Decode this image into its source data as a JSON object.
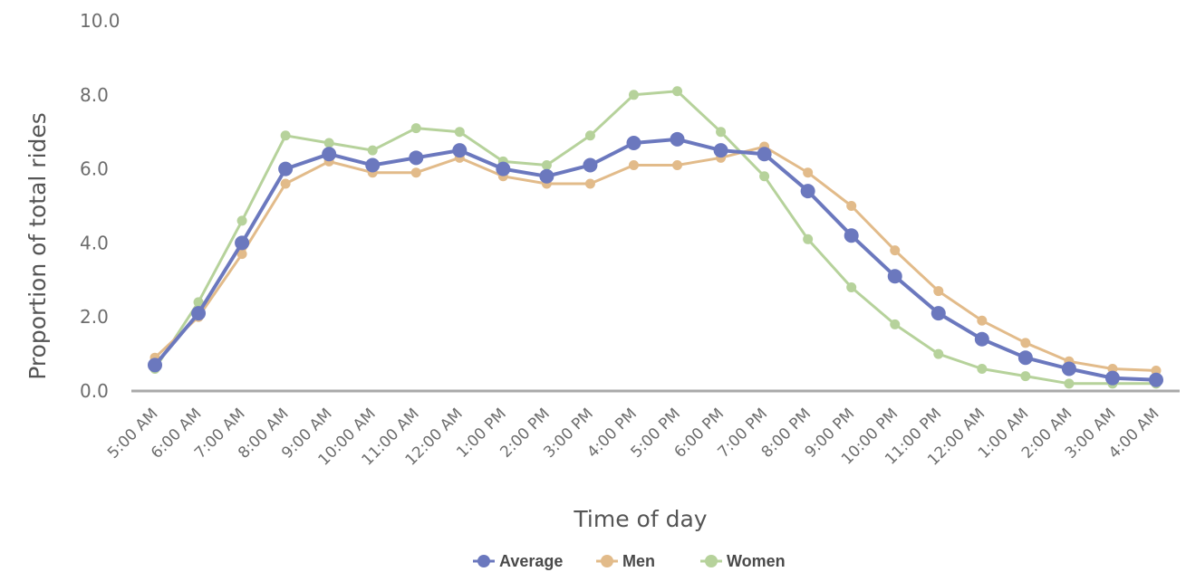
{
  "chart_data": {
    "type": "line",
    "xlabel": "Time of day",
    "ylabel": "Proportion of total rides",
    "ylim": [
      0,
      10
    ],
    "yticks": [
      "0.0",
      "2.0",
      "4.0",
      "6.0",
      "8.0",
      "10.0"
    ],
    "grid": false,
    "legend": "bottom-center",
    "categories": [
      "5:00 AM",
      "6:00 AM",
      "7:00 AM",
      "8:00 AM",
      "9:00 AM",
      "10:00 AM",
      "11:00 AM",
      "12:00 AM",
      "1:00 PM",
      "2:00 PM",
      "3:00 PM",
      "4:00 PM",
      "5:00 PM",
      "6:00 PM",
      "7:00 PM",
      "8:00 PM",
      "9:00 PM",
      "10:00 PM",
      "11:00 PM",
      "12:00 AM",
      "1:00 AM",
      "2:00 AM",
      "3:00 AM",
      "4:00 AM"
    ],
    "series": [
      {
        "name": "Average",
        "color": "#6b78be",
        "values": [
          0.7,
          2.1,
          4.0,
          6.0,
          6.4,
          6.1,
          6.3,
          6.5,
          6.0,
          5.8,
          6.1,
          6.7,
          6.8,
          6.5,
          6.4,
          5.4,
          4.2,
          3.1,
          2.1,
          1.4,
          0.9,
          0.6,
          0.35,
          0.3
        ]
      },
      {
        "name": "Men",
        "color": "#e2bb8a",
        "values": [
          0.9,
          2.0,
          3.7,
          5.6,
          6.2,
          5.9,
          5.9,
          6.3,
          5.8,
          5.6,
          5.6,
          6.1,
          6.1,
          6.3,
          6.6,
          5.9,
          5.0,
          3.8,
          2.7,
          1.9,
          1.3,
          0.8,
          0.6,
          0.55
        ]
      },
      {
        "name": "Women",
        "color": "#b6d29b",
        "values": [
          0.6,
          2.4,
          4.6,
          6.9,
          6.7,
          6.5,
          7.1,
          7.0,
          6.2,
          6.1,
          6.9,
          8.0,
          8.1,
          7.0,
          5.8,
          4.1,
          2.8,
          1.8,
          1.0,
          0.6,
          0.4,
          0.2,
          0.2,
          0.2
        ]
      }
    ]
  }
}
